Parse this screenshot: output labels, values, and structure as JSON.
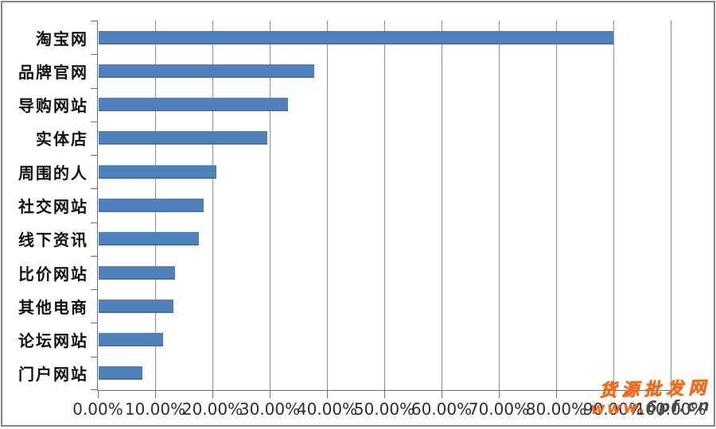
{
  "chart_data": {
    "type": "bar",
    "orientation": "horizontal",
    "title": "",
    "xlabel": "",
    "ylabel": "",
    "categories": [
      "淘宝网",
      "品牌官网",
      "导购网站",
      "实体店",
      "周围的人",
      "社交网站",
      "线下资讯",
      "比价网站",
      "其他电商",
      "论坛网站",
      "门户网站"
    ],
    "values": [
      89.9,
      37.7,
      33.1,
      29.5,
      20.5,
      18.4,
      17.5,
      13.4,
      13.1,
      11.3,
      7.6
    ],
    "xlim": [
      0,
      100
    ],
    "x_tick_step": 10,
    "x_tick_labels": [
      "0.00%",
      "10.00%",
      "20.00%",
      "30.00%",
      "40.00%",
      "50.00%",
      "60.00%",
      "70.00%",
      "80.00%",
      "90.00%",
      "100.00%"
    ],
    "grid": true,
    "legend": false,
    "bar_color": "#4f81bd",
    "gridline_color": "#8f8f8f",
    "axis_color": "#6f6f6f"
  },
  "watermark": {
    "line1": "货源批发网",
    "url_prefix": "www.",
    "url_suffix": "6pf.cn",
    "orange": "#ff6412",
    "dark": "#4a4a4a"
  }
}
